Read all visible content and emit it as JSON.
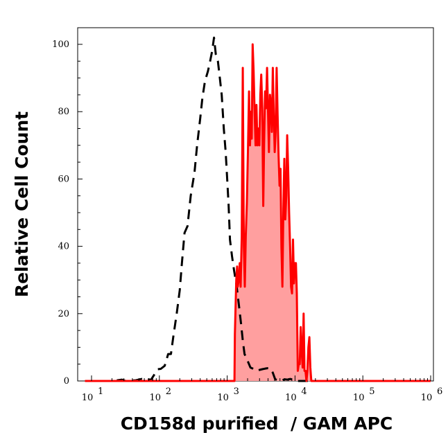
{
  "chart_data": {
    "type": "area",
    "xlabel": "CD158d purified  / GAM APC",
    "ylabel": "Relative Cell Count",
    "x_scale": "log",
    "xlim": [
      10,
      1000000
    ],
    "ylim": [
      0,
      105
    ],
    "x_ticks": [
      {
        "value": 10,
        "base": "10",
        "exp": "1"
      },
      {
        "value": 100,
        "base": "10",
        "exp": "2"
      },
      {
        "value": 1000,
        "base": "10",
        "exp": "3"
      },
      {
        "value": 10000,
        "base": "10",
        "exp": "4"
      },
      {
        "value": 100000,
        "base": "10",
        "exp": "5"
      },
      {
        "value": 1000000,
        "base": "10",
        "exp": "6"
      }
    ],
    "y_ticks": [
      0,
      20,
      40,
      60,
      80,
      100
    ],
    "grid": false,
    "legend": "none",
    "series": [
      {
        "style": "dashed",
        "color": "#000000",
        "fill": "none",
        "points": [
          [
            8,
            0
          ],
          [
            20,
            0
          ],
          [
            28,
            0.4
          ],
          [
            32,
            0
          ],
          [
            45,
            0.2
          ],
          [
            55,
            0.6
          ],
          [
            60,
            0.3
          ],
          [
            65,
            0.6
          ],
          [
            75,
            0.3
          ],
          [
            95,
            3.5
          ],
          [
            105,
            3.6
          ],
          [
            120,
            4.5
          ],
          [
            135,
            8
          ],
          [
            148,
            8
          ],
          [
            160,
            13
          ],
          [
            180,
            20
          ],
          [
            200,
            27
          ],
          [
            215,
            35
          ],
          [
            235,
            44
          ],
          [
            260,
            46
          ],
          [
            290,
            55
          ],
          [
            330,
            62
          ],
          [
            360,
            70
          ],
          [
            400,
            78
          ],
          [
            430,
            84
          ],
          [
            470,
            89
          ],
          [
            520,
            92
          ],
          [
            560,
            95
          ],
          [
            600,
            98
          ],
          [
            640,
            102
          ],
          [
            680,
            97
          ],
          [
            730,
            95
          ],
          [
            780,
            90
          ],
          [
            830,
            85
          ],
          [
            890,
            75
          ],
          [
            950,
            68
          ],
          [
            1000,
            60
          ],
          [
            1050,
            52
          ],
          [
            1100,
            42
          ],
          [
            1180,
            37
          ],
          [
            1260,
            33
          ],
          [
            1380,
            28
          ],
          [
            1500,
            22
          ],
          [
            1600,
            17
          ],
          [
            1700,
            12
          ],
          [
            1800,
            8
          ],
          [
            2000,
            6
          ],
          [
            2200,
            4
          ],
          [
            2500,
            3.5
          ],
          [
            2700,
            3
          ],
          [
            3000,
            3.3
          ],
          [
            3300,
            3.5
          ],
          [
            3700,
            3.7
          ],
          [
            4000,
            3.8
          ],
          [
            4300,
            3.8
          ],
          [
            4700,
            2.5
          ],
          [
            5100,
            0.5
          ],
          [
            5600,
            0.2
          ],
          [
            6200,
            0
          ],
          [
            7000,
            0.5
          ],
          [
            7800,
            0.4
          ],
          [
            8500,
            0.6
          ],
          [
            9500,
            0.3
          ],
          [
            11000,
            0
          ],
          [
            20000,
            0
          ],
          [
            1000000,
            0
          ]
        ]
      },
      {
        "style": "solid",
        "color": "#ff0000",
        "fill": "#ff9f9f",
        "points": [
          [
            8,
            0
          ],
          [
            1000,
            0
          ],
          [
            1280,
            0
          ],
          [
            1300,
            14
          ],
          [
            1360,
            30
          ],
          [
            1400,
            34
          ],
          [
            1430,
            28
          ],
          [
            1480,
            30
          ],
          [
            1530,
            35
          ],
          [
            1580,
            28
          ],
          [
            1640,
            43
          ],
          [
            1700,
            93
          ],
          [
            1760,
            40
          ],
          [
            1820,
            28
          ],
          [
            1880,
            43
          ],
          [
            1950,
            53
          ],
          [
            2020,
            68
          ],
          [
            2100,
            86
          ],
          [
            2170,
            70
          ],
          [
            2230,
            80
          ],
          [
            2300,
            72
          ],
          [
            2370,
            100
          ],
          [
            2450,
            92
          ],
          [
            2530,
            81
          ],
          [
            2620,
            70
          ],
          [
            2700,
            82
          ],
          [
            2790,
            70
          ],
          [
            2880,
            75
          ],
          [
            2980,
            70
          ],
          [
            3080,
            85
          ],
          [
            3180,
            91
          ],
          [
            3290,
            81
          ],
          [
            3400,
            52
          ],
          [
            3500,
            70
          ],
          [
            3620,
            86
          ],
          [
            3740,
            81
          ],
          [
            3870,
            93
          ],
          [
            4000,
            80
          ],
          [
            4130,
            68
          ],
          [
            4270,
            85
          ],
          [
            4410,
            82
          ],
          [
            4560,
            74
          ],
          [
            4710,
            93
          ],
          [
            4860,
            79
          ],
          [
            5020,
            68
          ],
          [
            5190,
            74
          ],
          [
            5360,
            93
          ],
          [
            5540,
            79
          ],
          [
            5720,
            67
          ],
          [
            5910,
            58
          ],
          [
            6110,
            63
          ],
          [
            6310,
            40
          ],
          [
            6520,
            28
          ],
          [
            6740,
            51
          ],
          [
            6960,
            66
          ],
          [
            7190,
            48
          ],
          [
            7430,
            55
          ],
          [
            7670,
            73
          ],
          [
            7930,
            63
          ],
          [
            8190,
            50
          ],
          [
            8470,
            40
          ],
          [
            8750,
            28
          ],
          [
            9040,
            26
          ],
          [
            9340,
            42
          ],
          [
            9650,
            29
          ],
          [
            9970,
            35
          ],
          [
            10300,
            35
          ],
          [
            10640,
            26
          ],
          [
            10990,
            3
          ],
          [
            11360,
            5
          ],
          [
            11740,
            5
          ],
          [
            12130,
            16
          ],
          [
            12530,
            9
          ],
          [
            12950,
            4
          ],
          [
            13380,
            20
          ],
          [
            13820,
            3
          ],
          [
            14280,
            3
          ],
          [
            14750,
            0
          ],
          [
            15240,
            3
          ],
          [
            15750,
            10
          ],
          [
            16270,
            13
          ],
          [
            16810,
            4
          ],
          [
            17370,
            0
          ],
          [
            30000,
            0
          ],
          [
            1000000,
            0
          ]
        ]
      }
    ]
  }
}
